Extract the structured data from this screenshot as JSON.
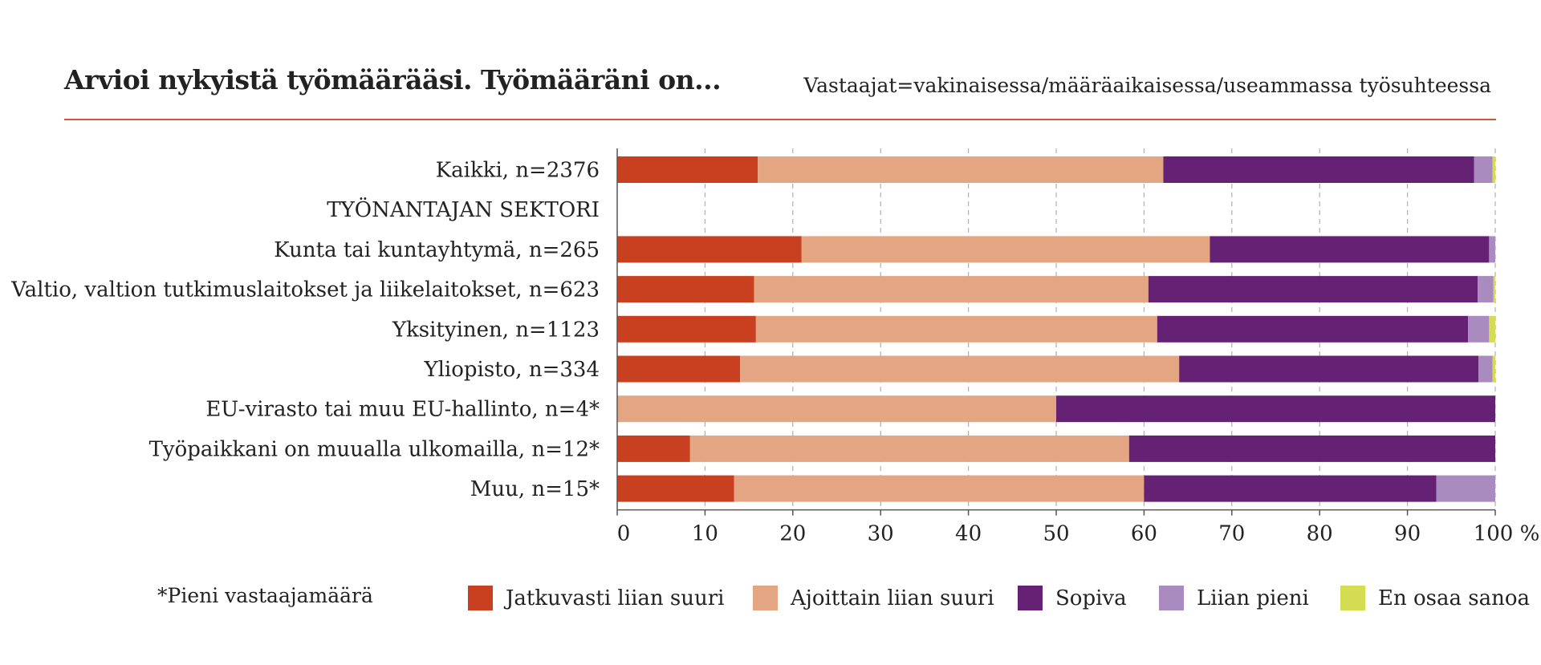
{
  "chart_data": {
    "type": "bar",
    "orientation": "horizontal",
    "stacked": true,
    "title": "Arvioi nykyistä työmäärääsi. Työmääräni on...",
    "subtitle": "Vastaajat=vakinaisessa/määräaikaisessa/useammassa työsuhteessa",
    "categories": [
      "Kaikki, n=2376",
      "TYÖNANTAJAN SEKTORI",
      "Kunta tai kuntayhtymä, n=265",
      "Valtio, valtion tutkimuslaitokset ja liikelaitokset, n=623",
      "Yksityinen, n=1123",
      "Yliopisto, n=334",
      "EU-virasto tai muu EU-hallinto, n=4*",
      "Työpaikkani on muualla ulkomailla, n=12*",
      "Muu, n=15*"
    ],
    "series": [
      {
        "name": "Jatkuvasti liian suuri",
        "color": "#c8401f",
        "values": [
          16,
          null,
          21,
          15.6,
          15.8,
          14,
          0,
          8.3,
          13.3
        ]
      },
      {
        "name": "Ajoittain liian suuri",
        "color": "#e3a582",
        "values": [
          46.2,
          null,
          46.5,
          44.9,
          45.7,
          50,
          50,
          50,
          46.7
        ]
      },
      {
        "name": "Sopiva",
        "color": "#652173",
        "values": [
          35.4,
          null,
          31.8,
          37.5,
          35.4,
          34.1,
          50,
          41.7,
          33.3
        ]
      },
      {
        "name": "Liian pieni",
        "color": "#a98bbf",
        "values": [
          2.1,
          null,
          0.7,
          1.8,
          2.4,
          1.6,
          0,
          0,
          6.7
        ]
      },
      {
        "name": "En osaa sanoa",
        "color": "#d4dc52",
        "values": [
          0.3,
          null,
          0,
          0.2,
          0.7,
          0.3,
          0,
          0,
          0
        ]
      }
    ],
    "xlim": [
      0,
      100
    ],
    "xticks": [
      0,
      10,
      20,
      30,
      40,
      50,
      60,
      70,
      80,
      90,
      100
    ],
    "xtick_labels": [
      "0",
      "10",
      "20",
      "30",
      "40",
      "50",
      "60",
      "70",
      "80",
      "90",
      "100 %"
    ],
    "grid": "vertical dashed",
    "legend_position": "bottom",
    "footnote": "*Pieni vastaajamäärä"
  },
  "colors": {
    "accent_rule": "#d2553b",
    "grid": "#b5b5b5",
    "axis": "#555555"
  }
}
